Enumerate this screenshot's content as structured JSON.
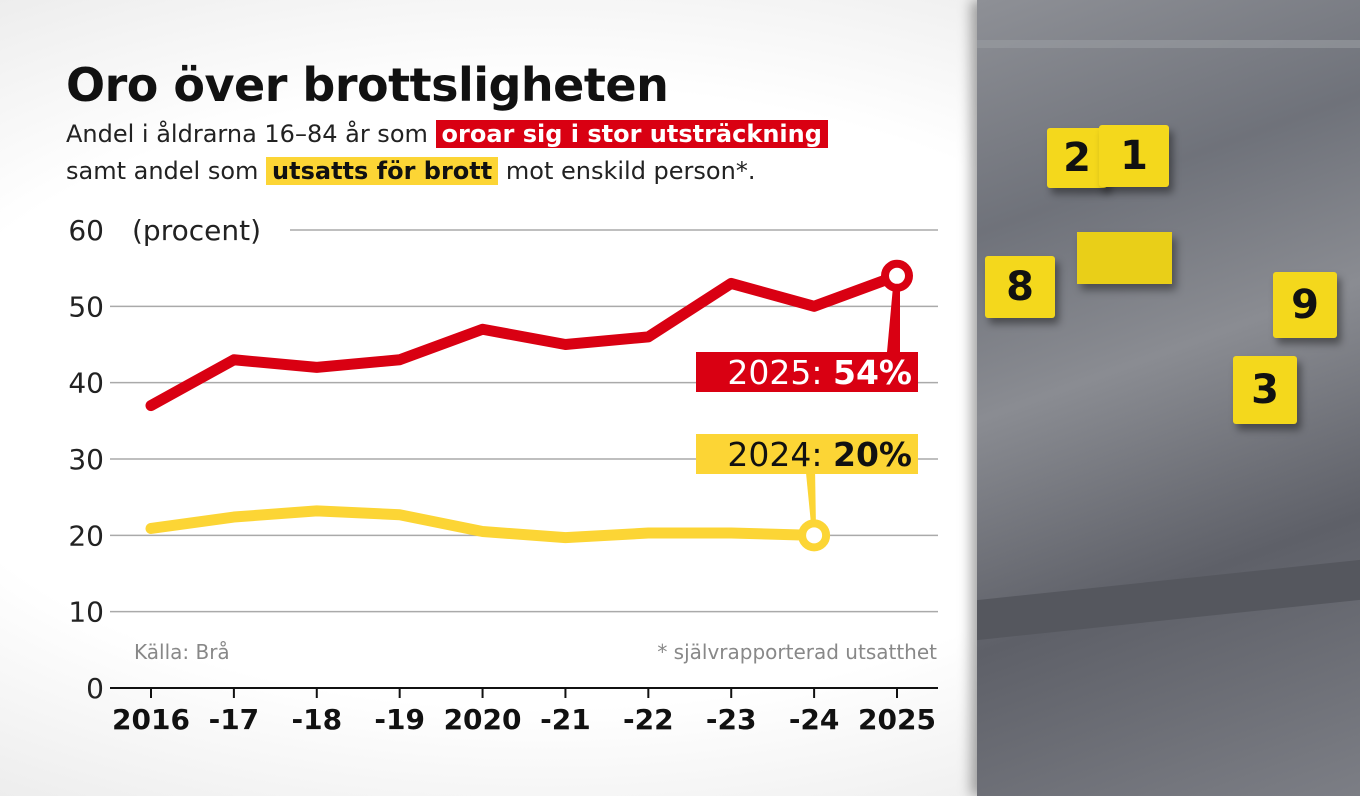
{
  "title": "Oro över brottsligheten",
  "subtitle": {
    "line1_pre": "Andel i åldrarna 16–84 år som ",
    "line1_highlight": "oroar sig i stor utsträckning",
    "line2_pre": "samt andel som ",
    "line2_highlight": "utsatts för brott",
    "line2_post": " mot enskild person*."
  },
  "source": "Källa: Brå",
  "footnote": "* självrapporterad utsatthet",
  "photo": {
    "marker_numbers": [
      "2",
      "1",
      "8",
      "9",
      "3"
    ]
  },
  "colors": {
    "red": "#d90012",
    "yellow": "#fcd535"
  },
  "chart_data": {
    "type": "line",
    "title": "Oro över brottsligheten",
    "ylabel": "(procent)",
    "ylim": [
      0,
      60
    ],
    "yticks": [
      "0",
      "10",
      "20",
      "30",
      "40",
      "50",
      "60"
    ],
    "categories": [
      "2016",
      "-17",
      "-18",
      "-19",
      "2020",
      "-21",
      "-22",
      "-23",
      "-24",
      "2025"
    ],
    "grid": true,
    "series": [
      {
        "name": "oroar sig i stor utsträckning",
        "color": "#d90012",
        "values": [
          37,
          43,
          42,
          43,
          47,
          45,
          46,
          53,
          50,
          54
        ],
        "callout": {
          "year_label": "2025: ",
          "value_label": "54%",
          "index": 9
        }
      },
      {
        "name": "utsatts för brott",
        "color": "#fcd535",
        "values": [
          20.9,
          22.4,
          23.2,
          22.7,
          20.5,
          19.7,
          20.3,
          20.3,
          20,
          null
        ],
        "callout": {
          "year_label": "2024: ",
          "value_label": "20%",
          "index": 8
        }
      }
    ]
  }
}
